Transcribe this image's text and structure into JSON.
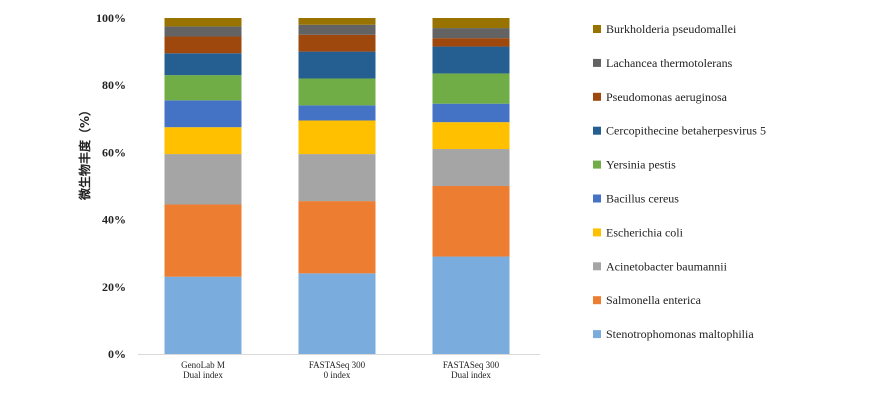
{
  "chart_data": {
    "type": "bar",
    "stacked": true,
    "percent": true,
    "ylabel": "微生物丰度（%）",
    "yticks": [
      "0%",
      "20%",
      "40%",
      "60%",
      "80%",
      "100%"
    ],
    "ylim": [
      0,
      100
    ],
    "grid": false,
    "legend_position": "right",
    "categories": [
      [
        "GenoLab M",
        "Dual index"
      ],
      [
        "FASTASeq 300",
        "0 index"
      ],
      [
        "FASTASeq 300",
        "Dual index"
      ]
    ],
    "series": [
      {
        "name": "Stenotrophomonas maltophilia",
        "color": "#7AACDE",
        "values": [
          23.0,
          24.0,
          29.0
        ]
      },
      {
        "name": "Salmonella enterica",
        "color": "#ED7D31",
        "values": [
          21.5,
          21.5,
          21.0
        ]
      },
      {
        "name": "Acinetobacter baumannii",
        "color": "#A5A5A5",
        "values": [
          15.0,
          14.0,
          11.0
        ]
      },
      {
        "name": "Escherichia coli",
        "color": "#FFC000",
        "values": [
          8.0,
          10.0,
          8.0
        ]
      },
      {
        "name": "Bacillus cereus",
        "color": "#4472C4",
        "values": [
          8.0,
          4.5,
          5.5
        ]
      },
      {
        "name": "Yersinia pestis",
        "color": "#70AD47",
        "values": [
          7.5,
          8.0,
          9.0
        ]
      },
      {
        "name": "Cercopithecine betaherpesvirus 5",
        "color": "#255E91",
        "values": [
          6.5,
          8.0,
          8.0
        ]
      },
      {
        "name": "Pseudomonas aeruginosa",
        "color": "#9E480E",
        "values": [
          5.0,
          5.0,
          2.5
        ]
      },
      {
        "name": "Lachancea thermotolerans",
        "color": "#636363",
        "values": [
          3.0,
          3.0,
          3.0
        ]
      },
      {
        "name": "Burkholderia pseudomallei",
        "color": "#997300",
        "values": [
          2.5,
          2.0,
          3.0
        ]
      }
    ]
  }
}
